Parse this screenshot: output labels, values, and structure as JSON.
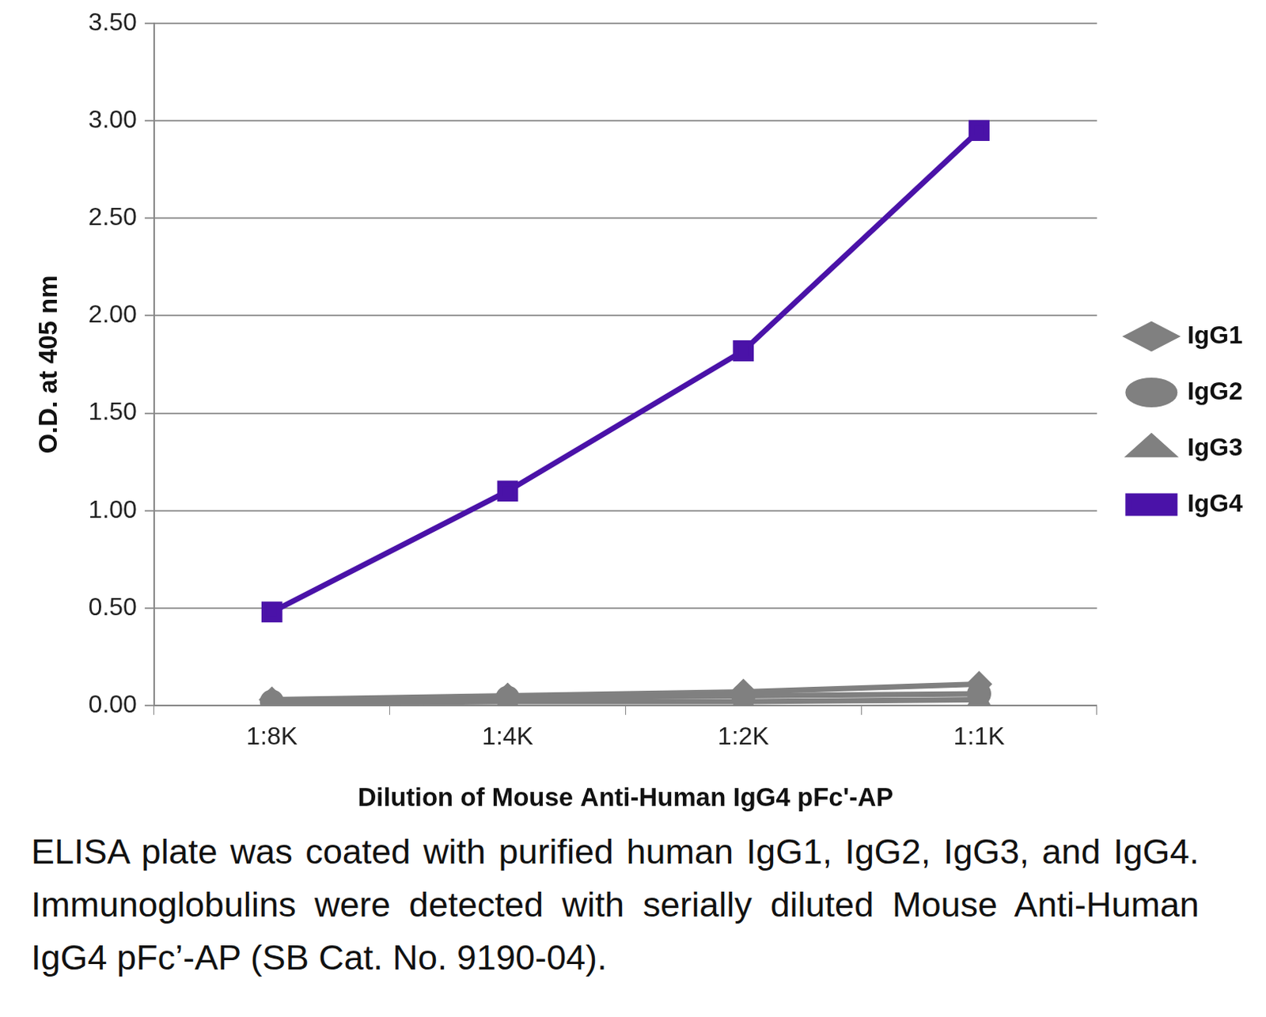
{
  "chart_data": {
    "type": "line",
    "x_label": "Dilution of Mouse Anti-Human IgG4 pFc'-AP",
    "y_label": "O.D. at 405 nm",
    "caption": "ELISA plate was coated with purified human IgG1, IgG2, IgG3, and IgG4.  Immunoglobulins were detected with serially diluted Mouse Anti-Human IgG4 pFc’-AP (SB Cat. No. 9190-04).",
    "categories": [
      "1:8K",
      "1:4K",
      "1:2K",
      "1:1K"
    ],
    "series": [
      {
        "name": "IgG1",
        "color": "#808080",
        "marker": "diamond",
        "line_style": "solid",
        "values": [
          0.03,
          0.05,
          0.07,
          0.11
        ]
      },
      {
        "name": "IgG2",
        "color": "#808080",
        "marker": "circle",
        "line_style": "solid",
        "values": [
          0.02,
          0.04,
          0.05,
          0.06
        ]
      },
      {
        "name": "IgG3",
        "color": "#808080",
        "marker": "triangle",
        "line_style": "solid",
        "values": [
          0.01,
          0.02,
          0.02,
          0.03
        ]
      },
      {
        "name": "IgG4",
        "color": "#4a12a8",
        "marker": "square",
        "line_style": "solid",
        "values": [
          0.48,
          1.1,
          1.82,
          2.95
        ]
      }
    ],
    "ylim": [
      0,
      3.5
    ],
    "yticks": [
      {
        "value": 0,
        "label": "0.00"
      },
      {
        "value": 0.5,
        "label": "0.50"
      },
      {
        "value": 1,
        "label": "1.00"
      },
      {
        "value": 1.5,
        "label": "1.50"
      },
      {
        "value": 2,
        "label": "2.00"
      },
      {
        "value": 2.5,
        "label": "2.50"
      },
      {
        "value": 3,
        "label": "3.00"
      },
      {
        "value": 3.5,
        "label": "3.50"
      }
    ],
    "grid": true,
    "legend": "right"
  }
}
